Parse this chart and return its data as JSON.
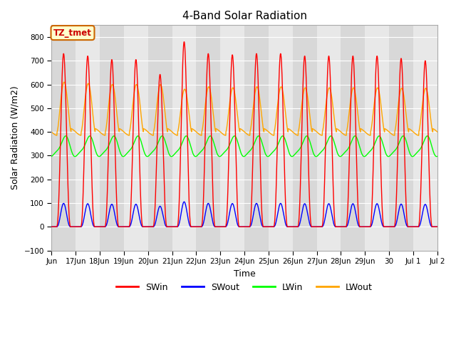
{
  "title": "4-Band Solar Radiation",
  "xlabel": "Time",
  "ylabel": "Solar Radiation (W/m2)",
  "ylim": [
    -100,
    850
  ],
  "yticks": [
    -100,
    0,
    100,
    200,
    300,
    400,
    500,
    600,
    700,
    800
  ],
  "annotation_text": "TZ_tmet",
  "annotation_color": "#cc0000",
  "annotation_bg": "#ffffcc",
  "annotation_border": "#cc6600",
  "colors": {
    "SWin": "#ff0000",
    "SWout": "#0000ff",
    "LWin": "#00ff00",
    "LWout": "#ffa500"
  },
  "xtick_labels": [
    "Jun",
    "17Jun",
    "18Jun",
    "19Jun",
    "20Jun",
    "21Jun",
    "22Jun",
    "23Jun",
    "24Jun",
    "25Jun",
    "26Jun",
    "27Jun",
    "28Jun",
    "29Jun",
    "30",
    "Jul 1",
    "Jul 2"
  ],
  "band_colors": [
    "#d8d8d8",
    "#e8e8e8"
  ],
  "plot_bg": "#e0e0e0",
  "fig_bg": "#ffffff",
  "grid_color": "#ffffff",
  "linewidth": 1.0
}
